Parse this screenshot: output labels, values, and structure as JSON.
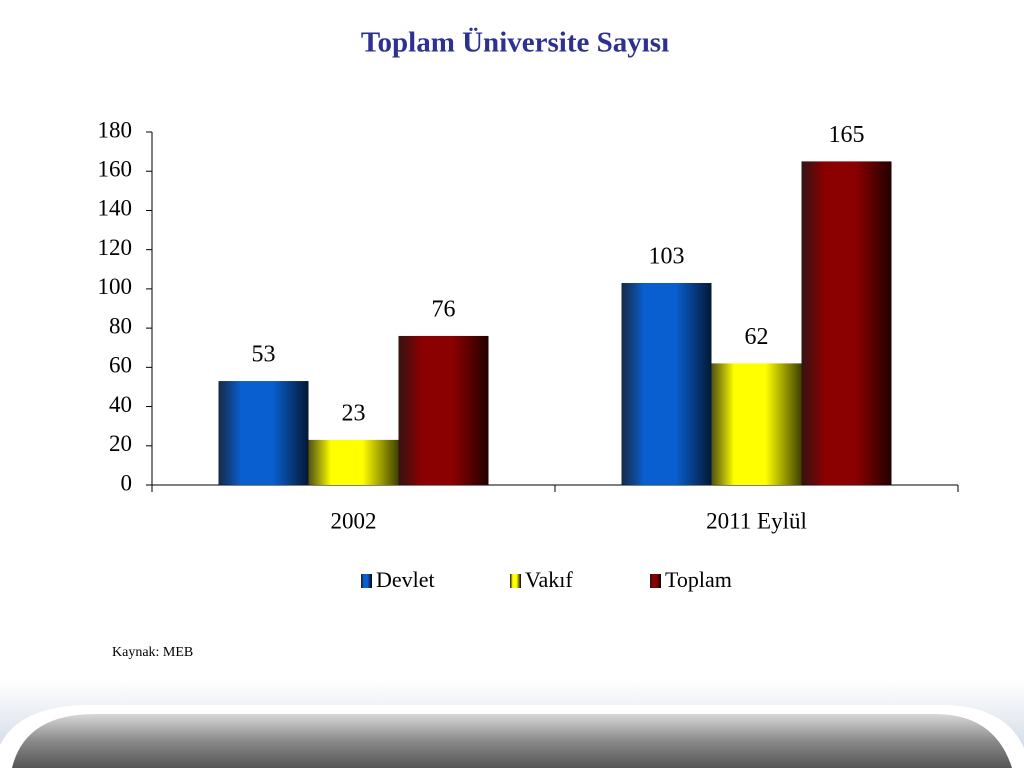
{
  "chart_data": {
    "type": "bar",
    "title": "Toplam Üniversite Sayısı",
    "categories": [
      "2002",
      "2011 Eylül"
    ],
    "series": [
      {
        "name": "Devlet",
        "color": "#0a5fd0",
        "values": [
          53,
          103
        ]
      },
      {
        "name": "Vakıf",
        "color": "#ffff00",
        "values": [
          23,
          62
        ]
      },
      {
        "name": "Toplam",
        "color": "#8b0000",
        "values": [
          76,
          165
        ]
      }
    ],
    "ylim": [
      0,
      180
    ],
    "yticks": [
      0,
      20,
      40,
      60,
      80,
      100,
      120,
      140,
      160,
      180
    ],
    "grid": false,
    "legend": "bottom",
    "source": "Kaynak: MEB"
  }
}
